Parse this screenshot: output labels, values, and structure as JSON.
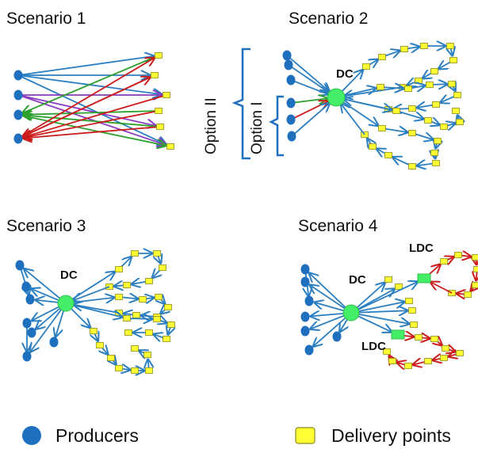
{
  "scenarios": [
    {
      "title": "Scenario 1"
    },
    {
      "title": "Scenario 2",
      "dc_label": "DC",
      "options": [
        "Option II",
        "Option I"
      ]
    },
    {
      "title": "Scenario 3",
      "dc_label": "DC"
    },
    {
      "title": "Scenario 4",
      "dc_label": "DC",
      "ldc_labels": [
        "LDC",
        "LDC"
      ]
    }
  ],
  "legend": {
    "producers": "Producers",
    "delivery_points": "Delivery points"
  },
  "colors": {
    "producer": "#1f6fbf",
    "delivery_point": "#ffff33",
    "delivery_point_border": "#8c8c1a",
    "hub": "#44ee66",
    "edge_blue": "#2b7fc1",
    "edge_red": "#cc1c1c",
    "edge_green": "#2ca02c",
    "edge_purple": "#8a3cc2",
    "bracket": "#1f6fbf"
  },
  "icons": {
    "producer": "blue-circle-icon",
    "delivery_point": "yellow-square-icon",
    "distribution_center": "green-circle-icon",
    "local_distribution_center": "green-rect-icon"
  }
}
